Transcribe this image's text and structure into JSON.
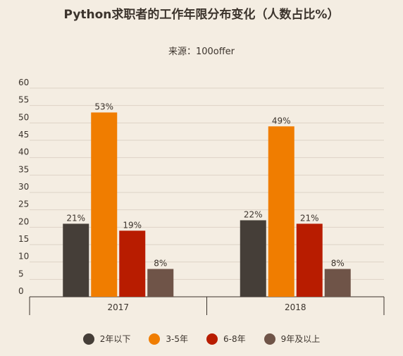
{
  "chart_data": {
    "type": "bar",
    "title": "Python求职者的工作年限分布变化（人数占比%）",
    "subtitle": "来源：100offer",
    "categories": [
      "2017",
      "2018"
    ],
    "series": [
      {
        "name": "2年以下",
        "color": "#453e38",
        "values": [
          21,
          22
        ],
        "labels": [
          "21%",
          "22%"
        ]
      },
      {
        "name": "3-5年",
        "color": "#f07d00",
        "values": [
          53,
          49
        ],
        "labels": [
          "53%",
          "49%"
        ]
      },
      {
        "name": "6-8年",
        "color": "#b81c00",
        "values": [
          19,
          21
        ],
        "labels": [
          "19%",
          "21%"
        ]
      },
      {
        "name": "9年及以上",
        "color": "#6f5448",
        "values": [
          8,
          8
        ],
        "labels": [
          "8%",
          "8%"
        ]
      }
    ],
    "yticks": [
      "0",
      "5",
      "10",
      "15",
      "20",
      "25",
      "30",
      "35",
      "40",
      "45",
      "50",
      "55",
      "60"
    ],
    "ylim": [
      0,
      60
    ],
    "grid": true,
    "legend_position": "bottom"
  }
}
